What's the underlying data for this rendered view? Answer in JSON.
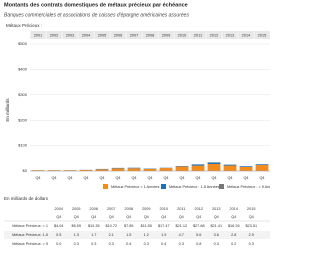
{
  "chart_data": {
    "type": "bar",
    "title": "Montants des contrats domestiques de métaux précieux par échéance",
    "subtitle": "Banques commerciales et associations de caisses d'épargne américaines assurées",
    "series_label": "Métaux Précieux :",
    "ylabel": "En milliards",
    "categories": [
      "2001",
      "2002",
      "2003",
      "2004",
      "2005",
      "2006",
      "2007",
      "2008",
      "2009",
      "2010",
      "2011",
      "2012",
      "2013",
      "2014",
      "2015"
    ],
    "period_labels": [
      "Q4",
      "Q4",
      "Q4",
      "Q4",
      "Q4",
      "Q4",
      "Q4",
      "Q4",
      "Q4",
      "Q4",
      "Q4",
      "Q4",
      "Q4",
      "Q4",
      "Q4"
    ],
    "ylim": [
      0,
      500
    ],
    "yticks": [
      {
        "value": 0,
        "label": "$0"
      },
      {
        "value": 100,
        "label": "$100"
      },
      {
        "value": 200,
        "label": "$200"
      },
      {
        "value": 300,
        "label": "$300"
      },
      {
        "value": 400,
        "label": "$400"
      },
      {
        "value": 500,
        "label": "$500"
      }
    ],
    "stacked": true,
    "series": [
      {
        "name": "Métaux Précieux < 1 Années",
        "color": "#f28c1e",
        "values": [
          3,
          3,
          3,
          4.04,
          6.59,
          10.35,
          10.72,
          7.85,
          11.55,
          17.47,
          21.12,
          27.68,
          21.41,
          16.26,
          23.51
        ]
      },
      {
        "name": "Métaux Précieux : 1-5 Années",
        "color": "#1f6fb4",
        "values": [
          0.3,
          0.4,
          0.4,
          0.5,
          1.3,
          1.7,
          2.1,
          1.5,
          1.2,
          1.9,
          4.7,
          5.6,
          3.6,
          2.8,
          2.9
        ]
      },
      {
        "name": "Métaux Précieux : > 5 Années",
        "color": "#777777",
        "values": [
          0,
          0,
          0,
          0,
          0.3,
          0.3,
          0.3,
          0.4,
          0.3,
          0.4,
          0.3,
          0.8,
          0.3,
          0.2,
          0.3
        ]
      }
    ]
  },
  "table": {
    "unit": "En milliards de dollars",
    "years": [
      "2004",
      "2005",
      "2006",
      "2007",
      "2008",
      "2009",
      "2010",
      "2011",
      "2012",
      "2013",
      "2014",
      "2015"
    ],
    "periods": [
      "Q4",
      "Q4",
      "Q4",
      "Q4",
      "Q4",
      "Q4",
      "Q4",
      "Q4",
      "Q4",
      "Q4",
      "Q4",
      "Q4"
    ],
    "rows": [
      {
        "label": "Métaux Précieux: < 1",
        "cells": [
          "$4.04",
          "$6.59",
          "$10.35",
          "$10.72",
          "$7.85",
          "$11.55",
          "$17.47",
          "$21.12",
          "$27.68",
          "$21.41",
          "$16.26",
          "$23.51"
        ]
      },
      {
        "label": "Métaux Précieux: 1-5",
        "cells": [
          "0.5",
          "1.3",
          "1.7",
          "2.1",
          "1.5",
          "1.2",
          "1.9",
          "4.7",
          "5.6",
          "3.6",
          "2.8",
          "2.9"
        ]
      },
      {
        "label": "Métaux Précieux: > 5",
        "cells": [
          "0.0",
          "0.3",
          "0.3",
          "0.3",
          "0.4",
          "0.3",
          "0.4",
          "0.3",
          "0.8",
          "0.3",
          "0.2",
          "0.3"
        ]
      }
    ]
  }
}
